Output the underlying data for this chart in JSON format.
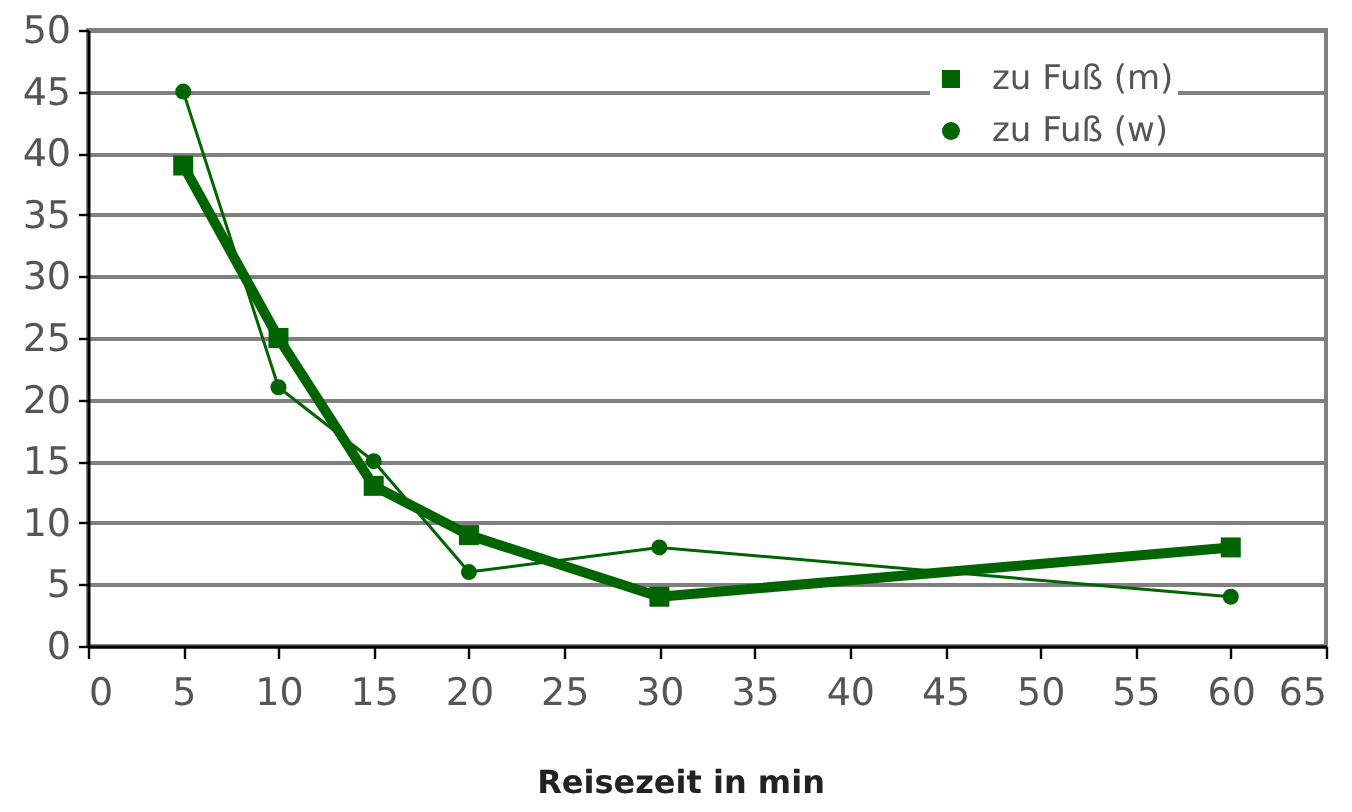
{
  "chart_data": {
    "type": "line",
    "xlabel": "Reisezeit in min",
    "x": [
      5,
      10,
      15,
      20,
      30,
      60
    ],
    "series": [
      {
        "name": "zu Fuß (m)",
        "color": "#006400",
        "marker": "square",
        "values": [
          39,
          25,
          13,
          9,
          4,
          8
        ]
      },
      {
        "name": "zu Fuß (w)",
        "color": "#006400",
        "marker": "circle",
        "values": [
          45,
          21,
          15,
          6,
          8,
          4
        ]
      }
    ],
    "xlim": [
      0,
      65
    ],
    "xticks": [
      0,
      5,
      10,
      15,
      20,
      25,
      30,
      35,
      40,
      45,
      50,
      55,
      60,
      65
    ],
    "ylim": [
      0,
      50
    ],
    "yticks": [
      0,
      5,
      10,
      15,
      20,
      25,
      30,
      35,
      40,
      45,
      50
    ],
    "grid": "y",
    "legend": "top right"
  }
}
